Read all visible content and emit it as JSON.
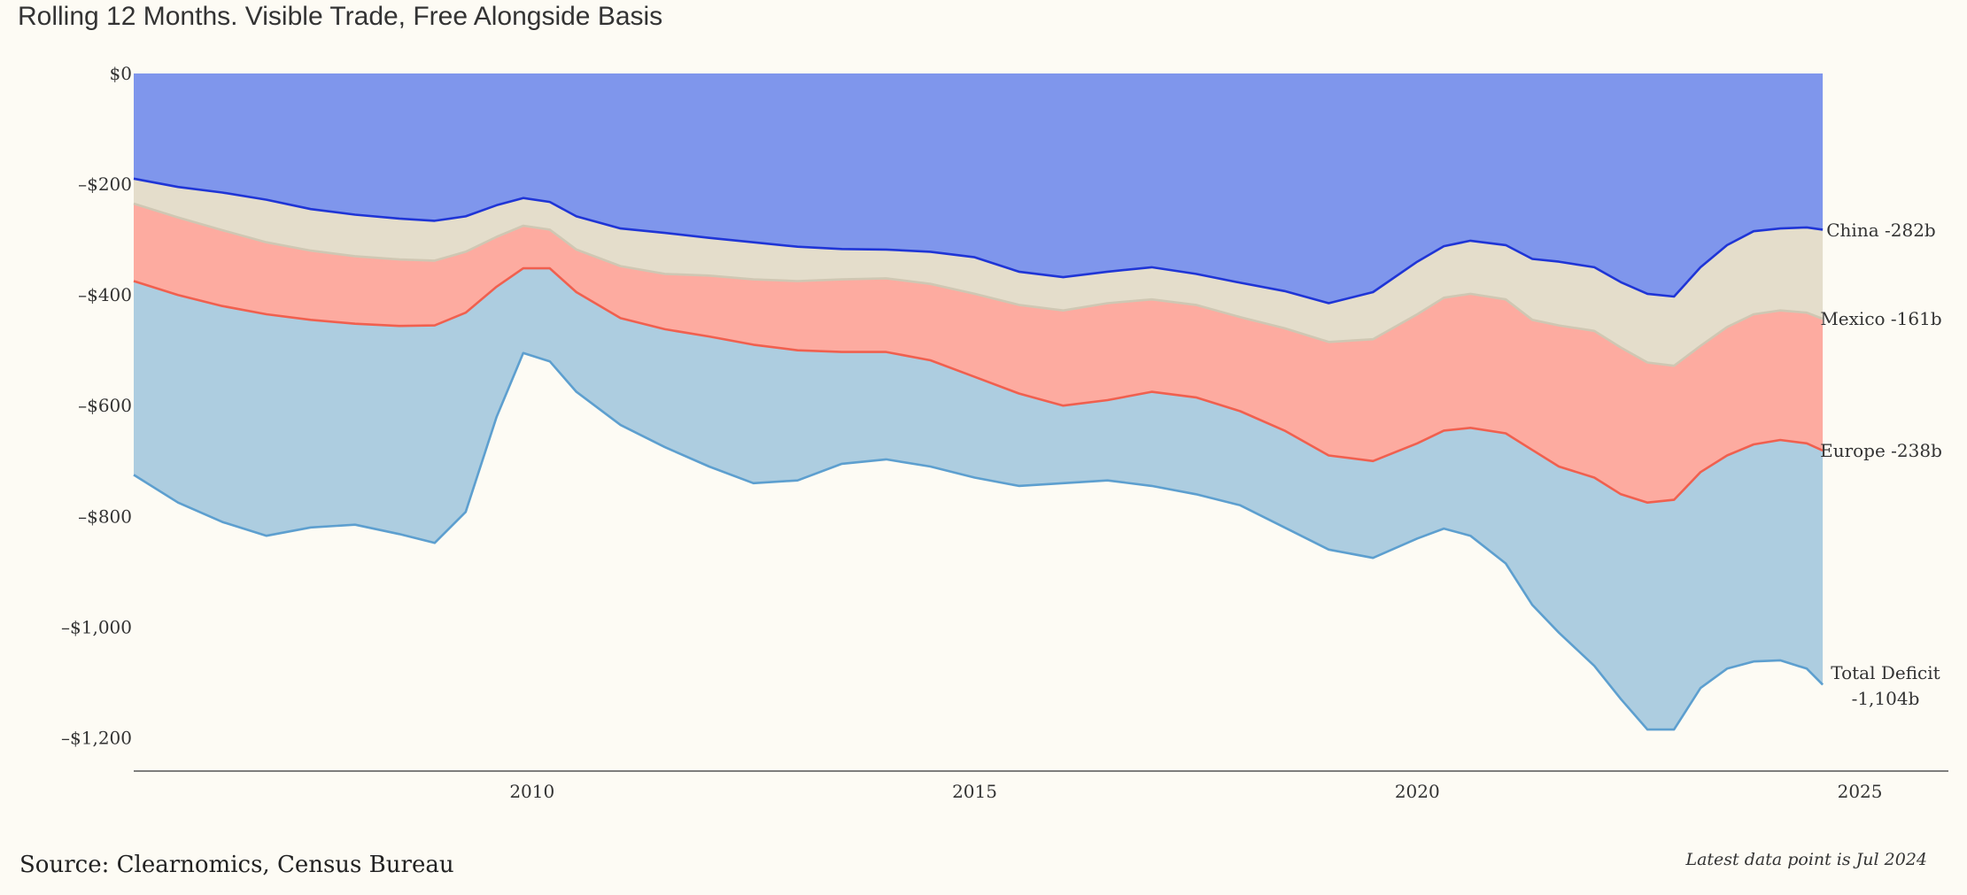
{
  "title": "Rolling 12 Months. Visible Trade, Free Alongside Basis",
  "source": "Source: Clearnomics, Census Bureau",
  "note": "Latest data point is Jul 2024",
  "colors": {
    "china_fill": "#7f96ec",
    "china_line": "#1f35d6",
    "mexico_fill": "#e4ddcb",
    "mexico_line": "#cfc7b3",
    "europe_fill": "#fdaba0",
    "europe_line": "#f0604f",
    "total_fill": "#adcde0",
    "total_line": "#5d9fcf",
    "axis": "#555555"
  },
  "chart_data": {
    "type": "area",
    "xlim": [
      2005.5,
      2026.0
    ],
    "ylim": [
      -1260,
      0
    ],
    "x_ticks": [
      2010,
      2015,
      2020,
      2025
    ],
    "x_tick_labels": [
      "2010",
      "2015",
      "2020",
      "2025"
    ],
    "y_ticks": [
      0,
      -200,
      -400,
      -600,
      -800,
      -1000,
      -1200
    ],
    "y_tick_labels": [
      "$0",
      "–$200",
      "–$400",
      "–$600",
      "–$800",
      "–$1,000",
      "–$1,200"
    ],
    "x": [
      2005.5,
      2006.0,
      2006.5,
      2007.0,
      2007.5,
      2008.0,
      2008.5,
      2008.9,
      2009.25,
      2009.6,
      2009.9,
      2010.2,
      2010.5,
      2011.0,
      2011.5,
      2012.0,
      2012.5,
      2013.0,
      2013.5,
      2014.0,
      2014.5,
      2015.0,
      2015.5,
      2016.0,
      2016.5,
      2017.0,
      2017.5,
      2018.0,
      2018.5,
      2019.0,
      2019.5,
      2020.0,
      2020.3,
      2020.6,
      2021.0,
      2021.3,
      2021.6,
      2022.0,
      2022.3,
      2022.6,
      2022.9,
      2023.2,
      2023.5,
      2023.8,
      2024.1,
      2024.4,
      2024.58
    ],
    "series": [
      {
        "name": "China",
        "end_label": "China -282b",
        "values": [
          -190,
          -205,
          -215,
          -228,
          -245,
          -255,
          -262,
          -266,
          -258,
          -238,
          -225,
          -232,
          -258,
          -280,
          -288,
          -297,
          -305,
          -313,
          -317,
          -318,
          -322,
          -332,
          -358,
          -368,
          -358,
          -350,
          -362,
          -378,
          -393,
          -415,
          -395,
          -340,
          -312,
          -302,
          -310,
          -335,
          -340,
          -350,
          -377,
          -398,
          -403,
          -350,
          -310,
          -285,
          -280,
          -278,
          -282
        ]
      },
      {
        "name": "Mexico",
        "end_label": "Mexico -161b",
        "values": [
          -235,
          -260,
          -283,
          -305,
          -320,
          -330,
          -336,
          -338,
          -322,
          -295,
          -275,
          -282,
          -318,
          -348,
          -362,
          -365,
          -372,
          -375,
          -372,
          -370,
          -380,
          -398,
          -418,
          -428,
          -415,
          -408,
          -418,
          -440,
          -460,
          -485,
          -480,
          -435,
          -405,
          -398,
          -408,
          -445,
          -455,
          -465,
          -495,
          -522,
          -528,
          -492,
          -458,
          -435,
          -428,
          -432,
          -443
        ]
      },
      {
        "name": "Europe",
        "end_label": "Europe -238b",
        "values": [
          -375,
          -400,
          -420,
          -435,
          -445,
          -452,
          -456,
          -455,
          -432,
          -385,
          -352,
          -352,
          -395,
          -442,
          -462,
          -475,
          -490,
          -500,
          -503,
          -503,
          -518,
          -548,
          -578,
          -600,
          -590,
          -575,
          -585,
          -610,
          -645,
          -690,
          -700,
          -668,
          -645,
          -640,
          -650,
          -680,
          -710,
          -730,
          -760,
          -775,
          -770,
          -720,
          -690,
          -670,
          -662,
          -668,
          -681
        ]
      },
      {
        "name": "Total Deficit",
        "end_label": [
          "Total Deficit",
          "-1,104b"
        ],
        "values": [
          -725,
          -775,
          -810,
          -835,
          -820,
          -815,
          -832,
          -848,
          -792,
          -620,
          -505,
          -520,
          -575,
          -635,
          -675,
          -710,
          -740,
          -735,
          -705,
          -697,
          -710,
          -730,
          -745,
          -740,
          -735,
          -745,
          -760,
          -780,
          -820,
          -860,
          -875,
          -840,
          -822,
          -835,
          -885,
          -960,
          -1010,
          -1070,
          -1130,
          -1185,
          -1185,
          -1110,
          -1075,
          -1062,
          -1060,
          -1075,
          -1104
        ]
      }
    ]
  }
}
